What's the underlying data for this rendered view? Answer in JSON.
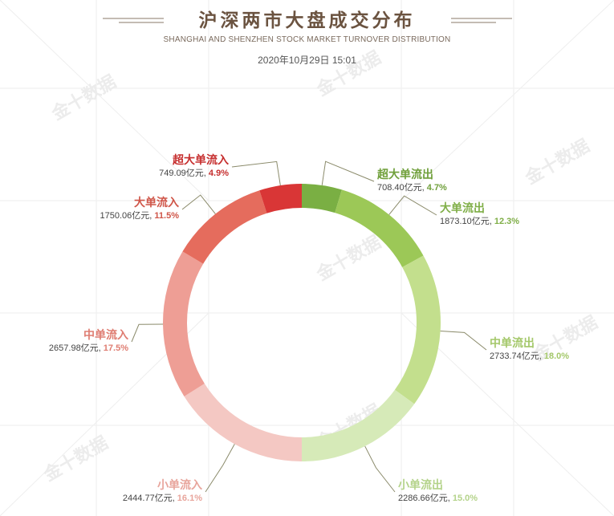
{
  "header": {
    "title": "沪深两市大盘成交分布",
    "subtitle": "SHANGHAI AND SHENZHEN STOCK MARKET TURNOVER DISTRIBUTION",
    "date": "2020年10月29日 15:01"
  },
  "watermark": "金十数据",
  "chart_data": {
    "type": "pie",
    "title": "沪深两市大盘成交分布",
    "subtitle": "SHANGHAI AND SHENZHEN STOCK MARKET TURNOVER DISTRIBUTION",
    "unit": "亿元",
    "slices": [
      {
        "name": "超大单流出",
        "value": 708.4,
        "display_value": "708.40亿元",
        "percent": 4.7,
        "display_percent": "4.7%",
        "color": "#7aaf43",
        "text_color": "#6f9f3a"
      },
      {
        "name": "大单流出",
        "value": 1873.1,
        "display_value": "1873.10亿元",
        "percent": 12.3,
        "display_percent": "12.3%",
        "color": "#9cc857",
        "text_color": "#7fae47"
      },
      {
        "name": "中单流出",
        "value": 2733.74,
        "display_value": "2733.74亿元",
        "percent": 18.0,
        "display_percent": "18.0%",
        "color": "#c3df8d",
        "text_color": "#a4c86a"
      },
      {
        "name": "小单流出",
        "value": 2286.66,
        "display_value": "2286.66亿元",
        "percent": 15.0,
        "display_percent": "15.0%",
        "color": "#d6eab8",
        "text_color": "#b4d38a"
      },
      {
        "name": "小单流入",
        "value": 2444.77,
        "display_value": "2444.77亿元",
        "percent": 16.1,
        "display_percent": "16.1%",
        "color": "#f4c8c3",
        "text_color": "#e8a59c"
      },
      {
        "name": "中单流入",
        "value": 2657.98,
        "display_value": "2657.98亿元",
        "percent": 17.5,
        "display_percent": "17.5%",
        "color": "#ee9e95",
        "text_color": "#df7d72"
      },
      {
        "name": "大单流入",
        "value": 1750.06,
        "display_value": "1750.06亿元",
        "percent": 11.5,
        "display_percent": "11.5%",
        "color": "#e56c5d",
        "text_color": "#cf5548"
      },
      {
        "name": "超大单流入",
        "value": 749.09,
        "display_value": "749.09亿元",
        "percent": 4.9,
        "display_percent": "4.9%",
        "color": "#d93636",
        "text_color": "#c62f2f"
      }
    ]
  }
}
